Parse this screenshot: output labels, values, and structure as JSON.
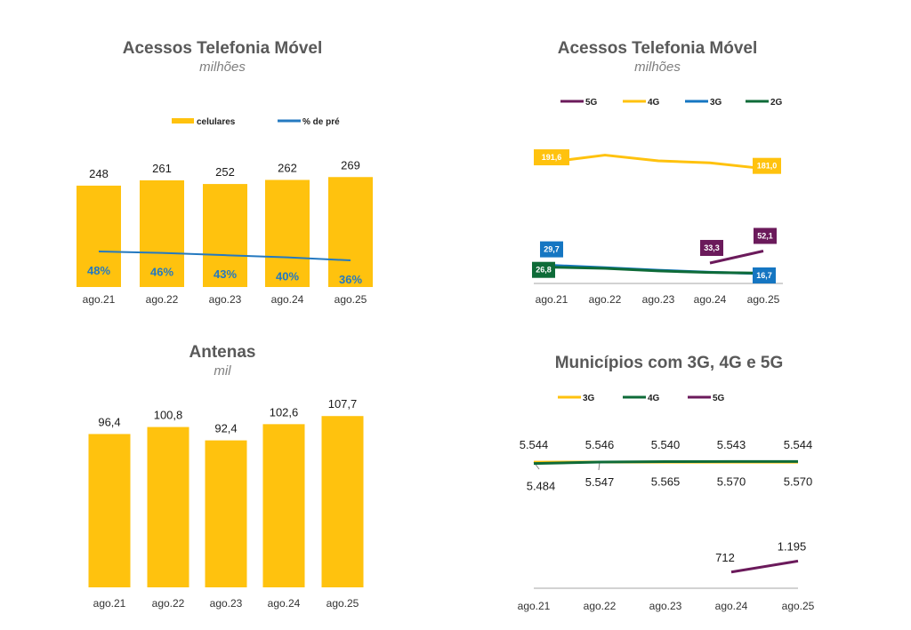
{
  "chart_data": [
    {
      "type": "bar",
      "title": "Acessos Telefonia Móvel",
      "subtitle": "milhões",
      "categories": [
        "ago.21",
        "ago.22",
        "ago.23",
        "ago.24",
        "ago.25"
      ],
      "legend": "top",
      "grid": false,
      "series": [
        {
          "name": "celulares",
          "type": "bar",
          "color": "#FFC20E",
          "axis": "primary",
          "values": [
            248,
            261,
            252,
            262,
            269
          ],
          "labels": [
            "248",
            "261",
            "252",
            "262",
            "269"
          ]
        },
        {
          "name": "% de pré",
          "type": "line",
          "color": "#2479C0",
          "axis": "secondary",
          "unit": "%",
          "values": [
            48,
            46,
            43,
            40,
            36
          ],
          "labels": [
            "48%",
            "46%",
            "43%",
            "40%",
            "36%"
          ]
        }
      ]
    },
    {
      "type": "line",
      "title": "Acessos Telefonia Móvel",
      "subtitle": "milhões",
      "categories": [
        "ago.21",
        "ago.22",
        "ago.23",
        "ago.24",
        "ago.25"
      ],
      "legend": "top",
      "grid": false,
      "series": [
        {
          "name": "5G",
          "color": "#6B1A5B",
          "values": [
            null,
            null,
            null,
            33.3,
            52.1
          ],
          "labels": [
            null,
            null,
            null,
            "33,3",
            "52,1"
          ]
        },
        {
          "name": "4G",
          "color": "#FFC20E",
          "values": [
            191.6,
            202,
            193,
            190,
            181.0
          ],
          "labels": [
            "191,6",
            null,
            null,
            null,
            "181,0"
          ]
        },
        {
          "name": "3G",
          "color": "#1576C2",
          "values": [
            29.7,
            26,
            22,
            19,
            16.7
          ],
          "labels": [
            "29,7",
            null,
            null,
            null,
            "16,7"
          ]
        },
        {
          "name": "2G",
          "color": "#0E6B38",
          "values": [
            26.8,
            25,
            21,
            18.5,
            17.5
          ],
          "labels": [
            "26,8",
            null,
            null,
            null,
            null
          ]
        }
      ]
    },
    {
      "type": "bar",
      "title": "Antenas",
      "subtitle": "mil",
      "categories": [
        "ago.21",
        "ago.22",
        "ago.23",
        "ago.24",
        "ago.25"
      ],
      "legend": "none",
      "grid": false,
      "series": [
        {
          "name": "Antenas",
          "color": "#FFC20E",
          "values": [
            96.4,
            100.8,
            92.4,
            102.6,
            107.7
          ],
          "labels": [
            "96,4",
            "100,8",
            "92,4",
            "102,6",
            "107,7"
          ]
        }
      ]
    },
    {
      "type": "line",
      "title": "Municípios com 3G, 4G e 5G",
      "categories": [
        "ago.21",
        "ago.22",
        "ago.23",
        "ago.24",
        "ago.25"
      ],
      "legend": "top",
      "grid": false,
      "series": [
        {
          "name": "3G",
          "color": "#FFC20E",
          "values": [
            5544,
            5546,
            5540,
            5543,
            5544
          ],
          "labels": [
            "5.544",
            "5.546",
            "5.540",
            "5.543",
            "5.544"
          ]
        },
        {
          "name": "4G",
          "color": "#0E6B38",
          "values": [
            5484,
            5547,
            5565,
            5570,
            5570
          ],
          "labels": [
            "5.484",
            "5.547",
            "5.565",
            "5.570",
            "5.570"
          ]
        },
        {
          "name": "5G",
          "color": "#6B1A5B",
          "values": [
            null,
            null,
            null,
            712,
            1195
          ],
          "labels": [
            null,
            null,
            null,
            "712",
            "1.195"
          ]
        }
      ]
    }
  ]
}
